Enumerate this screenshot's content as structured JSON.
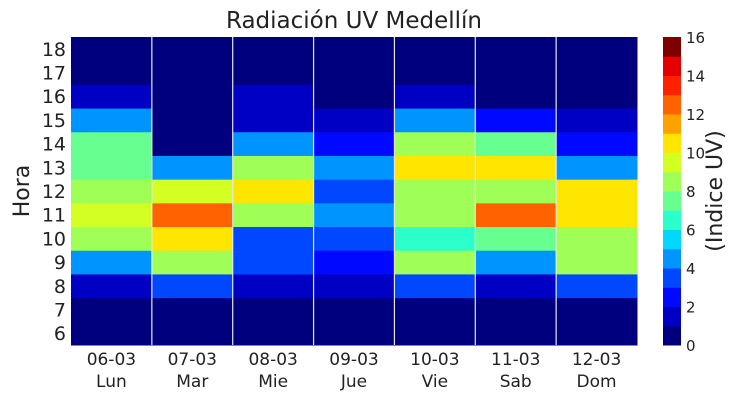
{
  "chart_data": {
    "type": "heatmap",
    "title": "Radiación UV Medellín",
    "ylabel": "Hora",
    "x_categories": [
      {
        "date": "06-03",
        "day": "Lun"
      },
      {
        "date": "07-03",
        "day": "Mar"
      },
      {
        "date": "08-03",
        "day": "Mie"
      },
      {
        "date": "09-03",
        "day": "Jue"
      },
      {
        "date": "10-03",
        "day": "Vie"
      },
      {
        "date": "11-03",
        "day": "Sab"
      },
      {
        "date": "12-03",
        "day": "Dom"
      }
    ],
    "y_categories": [
      6,
      7,
      8,
      9,
      10,
      11,
      12,
      13,
      14,
      15,
      16,
      17,
      18
    ],
    "values": [
      [
        0,
        0,
        0,
        0,
        0,
        0,
        0
      ],
      [
        0,
        0,
        0,
        0,
        0,
        0,
        0
      ],
      [
        1,
        3,
        1,
        1,
        3,
        1,
        3
      ],
      [
        4,
        8,
        3,
        2,
        8,
        4,
        8
      ],
      [
        8,
        10,
        3,
        3,
        6,
        7,
        8
      ],
      [
        9,
        12,
        8,
        4,
        8,
        12,
        10
      ],
      [
        8,
        9,
        10,
        3,
        8,
        8,
        10
      ],
      [
        7,
        4,
        8,
        4,
        10,
        10,
        4
      ],
      [
        7,
        0,
        4,
        2,
        8,
        7,
        2
      ],
      [
        4,
        0,
        1,
        1,
        4,
        2,
        1
      ],
      [
        1,
        0,
        1,
        0,
        1,
        0,
        0
      ],
      [
        0,
        0,
        0,
        0,
        0,
        0,
        0
      ],
      [
        0,
        0,
        0,
        0,
        0,
        0,
        0
      ]
    ],
    "colorbar": {
      "label": "(Indice UV)",
      "min": 0,
      "max": 16,
      "ticks": [
        0,
        2,
        4,
        6,
        8,
        10,
        12,
        14,
        16
      ],
      "colors": [
        "#00007f",
        "#0000c4",
        "#0008ff",
        "#0048ff",
        "#0094ff",
        "#00d8ff",
        "#2cffca",
        "#66ff90",
        "#a0ff56",
        "#d4ff22",
        "#ffe600",
        "#ffa200",
        "#ff6200",
        "#ff2200",
        "#e40000",
        "#7f0000"
      ]
    },
    "grid": "vertical"
  }
}
